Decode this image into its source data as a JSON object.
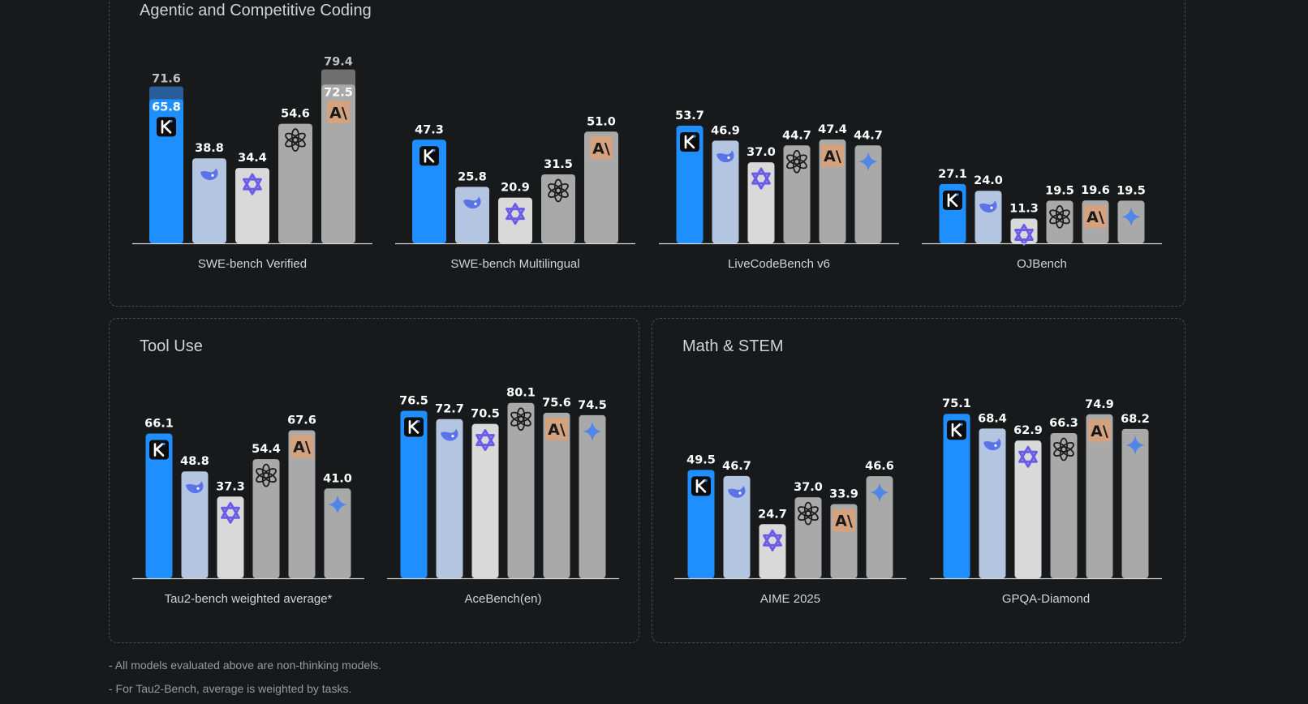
{
  "sections": {
    "coding_title": "Agentic and Competitive Coding",
    "tool_title": "Tool Use",
    "math_title": "Math & STEM"
  },
  "models": [
    {
      "icon": "kimi-k-logo-icon",
      "color": "#1f8fff"
    },
    {
      "icon": "deepseek-whale-icon",
      "color": "#b3c5e0"
    },
    {
      "icon": "qwen-star-icon",
      "color": "#d9d9d9"
    },
    {
      "icon": "openai-knot-icon",
      "color": "#a9a9a9"
    },
    {
      "icon": "anthropic-a-icon",
      "color": "#a9a9a9"
    },
    {
      "icon": "gemini-sparkle-icon",
      "color": "#a9a9a9"
    }
  ],
  "chart_data": [
    {
      "type": "bar",
      "xlabel": "SWE-bench Verified",
      "ylim": [
        0,
        100
      ],
      "values": [
        65.8,
        38.8,
        34.4,
        54.6,
        72.5
      ],
      "secondary_values": [
        71.6,
        null,
        null,
        null,
        79.4
      ]
    },
    {
      "type": "bar",
      "xlabel": "SWE-bench Multilingual",
      "ylim": [
        0,
        100
      ],
      "values": [
        47.3,
        25.8,
        20.9,
        31.5,
        51.0
      ]
    },
    {
      "type": "bar",
      "xlabel": "LiveCodeBench v6",
      "ylim": [
        0,
        100
      ],
      "values": [
        53.7,
        46.9,
        37.0,
        44.7,
        47.4,
        44.7
      ]
    },
    {
      "type": "bar",
      "xlabel": "OJBench",
      "ylim": [
        0,
        100
      ],
      "values": [
        27.1,
        24.0,
        11.3,
        19.5,
        19.6,
        19.5
      ]
    },
    {
      "type": "bar",
      "xlabel": "Tau2-bench weighted average*",
      "ylim": [
        0,
        100
      ],
      "values": [
        66.1,
        48.8,
        37.3,
        54.4,
        67.6,
        41.0
      ]
    },
    {
      "type": "bar",
      "xlabel": "AceBench(en)",
      "ylim": [
        0,
        100
      ],
      "values": [
        76.5,
        72.7,
        70.5,
        80.1,
        75.6,
        74.5
      ]
    },
    {
      "type": "bar",
      "xlabel": "AIME 2025",
      "ylim": [
        0,
        100
      ],
      "values": [
        49.5,
        46.7,
        24.7,
        37.0,
        33.9,
        46.6
      ]
    },
    {
      "type": "bar",
      "xlabel": "GPQA-Diamond",
      "ylim": [
        0,
        100
      ],
      "values": [
        75.1,
        68.4,
        62.9,
        66.3,
        74.9,
        68.2
      ]
    }
  ],
  "footnotes": [
    "- All models evaluated above are non-thinking models.",
    "- For Tau2-Bench, average is weighted by tasks."
  ]
}
